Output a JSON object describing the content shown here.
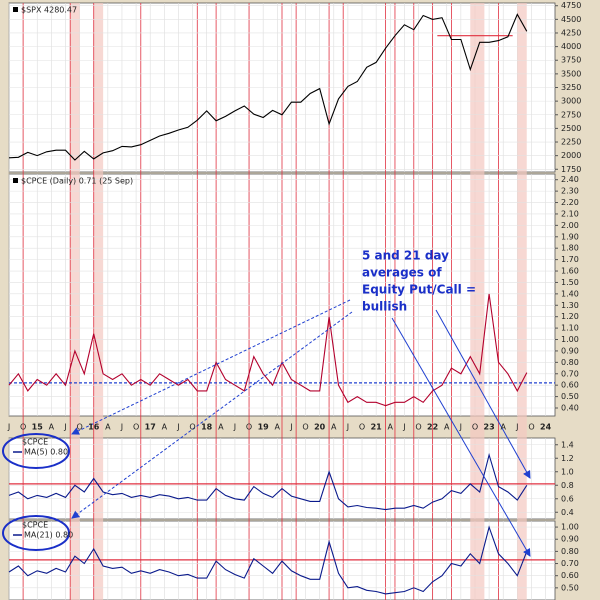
{
  "chart_data": [
    {
      "type": "line",
      "title": "$SPX 4280.47",
      "x": [
        "2014-07",
        "2014-09",
        "2014-11",
        "2015-01",
        "2015-03",
        "2015-05",
        "2015-07",
        "2015-09",
        "2015-11",
        "2016-01",
        "2016-03",
        "2016-05",
        "2016-07",
        "2016-09",
        "2016-11",
        "2017-01",
        "2017-03",
        "2017-05",
        "2017-07",
        "2017-09",
        "2017-11",
        "2018-01",
        "2018-03",
        "2018-05",
        "2018-07",
        "2018-09",
        "2018-11",
        "2019-01",
        "2019-03",
        "2019-05",
        "2019-07",
        "2019-09",
        "2019-11",
        "2020-01",
        "2020-03",
        "2020-05",
        "2020-07",
        "2020-09",
        "2020-11",
        "2021-01",
        "2021-03",
        "2021-05",
        "2021-07",
        "2021-09",
        "2021-11",
        "2022-01",
        "2022-03",
        "2022-05",
        "2022-07",
        "2022-09",
        "2022-11",
        "2023-01",
        "2023-03",
        "2023-05",
        "2023-07",
        "2023-09"
      ],
      "series": [
        {
          "name": "$SPX",
          "color": "#000000",
          "values": [
            1960,
            1970,
            2060,
            2000,
            2070,
            2100,
            2100,
            1920,
            2080,
            1940,
            2050,
            2090,
            2170,
            2160,
            2200,
            2280,
            2360,
            2410,
            2470,
            2520,
            2650,
            2820,
            2640,
            2720,
            2820,
            2910,
            2760,
            2700,
            2830,
            2750,
            2980,
            2980,
            3140,
            3230,
            2580,
            3040,
            3270,
            3360,
            3620,
            3710,
            3970,
            4200,
            4400,
            4310,
            4570,
            4500,
            4530,
            4130,
            4130,
            3580,
            4080,
            4080,
            4110,
            4180,
            4590,
            4280
          ]
        }
      ],
      "xlim": [
        "2014-07",
        "2024-03"
      ],
      "ylim": [
        1700,
        4800
      ],
      "yticks": [
        1750,
        2000,
        2250,
        2500,
        2750,
        3000,
        3250,
        3500,
        3750,
        4000,
        4250,
        4500,
        4750
      ],
      "hline": 4200,
      "hline_x": [
        "2022-02",
        "2023-06"
      ],
      "hline_color": "#e03040",
      "vlines": [
        "2014-10",
        "2015-08",
        "2016-01",
        "2016-11",
        "2017-11",
        "2018-03",
        "2018-10",
        "2019-05",
        "2019-08",
        "2020-03",
        "2020-06",
        "2021-03",
        "2021-05",
        "2021-09",
        "2022-01",
        "2022-05",
        "2023-03"
      ],
      "vline_color": "#e03040",
      "shaded": [
        [
          "2015-08",
          "2015-10"
        ],
        [
          "2016-01",
          "2016-03"
        ],
        [
          "2022-09",
          "2022-12"
        ],
        [
          "2023-07",
          "2023-09"
        ]
      ],
      "shade_color": "#f4c8c0"
    },
    {
      "type": "line",
      "title": "$CPCE (Daily) 0.71 (25 Sep)",
      "x": [
        "2014-07",
        "2014-09",
        "2014-11",
        "2015-01",
        "2015-03",
        "2015-05",
        "2015-07",
        "2015-09",
        "2015-11",
        "2016-01",
        "2016-03",
        "2016-05",
        "2016-07",
        "2016-09",
        "2016-11",
        "2017-01",
        "2017-03",
        "2017-05",
        "2017-07",
        "2017-09",
        "2017-11",
        "2018-01",
        "2018-03",
        "2018-05",
        "2018-07",
        "2018-09",
        "2018-11",
        "2019-01",
        "2019-03",
        "2019-05",
        "2019-07",
        "2019-09",
        "2019-11",
        "2020-01",
        "2020-03",
        "2020-05",
        "2020-07",
        "2020-09",
        "2020-11",
        "2021-01",
        "2021-03",
        "2021-05",
        "2021-07",
        "2021-09",
        "2021-11",
        "2022-01",
        "2022-03",
        "2022-05",
        "2022-07",
        "2022-09",
        "2022-11",
        "2023-01",
        "2023-03",
        "2023-05",
        "2023-07",
        "2023-09"
      ],
      "series": [
        {
          "name": "$CPCE",
          "color": "#b3002d",
          "values": [
            0.6,
            0.7,
            0.55,
            0.65,
            0.6,
            0.7,
            0.6,
            0.9,
            0.7,
            1.05,
            0.7,
            0.65,
            0.7,
            0.6,
            0.65,
            0.6,
            0.7,
            0.65,
            0.6,
            0.65,
            0.55,
            0.55,
            0.8,
            0.65,
            0.6,
            0.55,
            0.85,
            0.7,
            0.6,
            0.8,
            0.65,
            0.6,
            0.55,
            0.55,
            1.2,
            0.6,
            0.45,
            0.5,
            0.45,
            0.45,
            0.42,
            0.45,
            0.45,
            0.5,
            0.45,
            0.55,
            0.6,
            0.75,
            0.7,
            0.85,
            0.7,
            1.4,
            0.8,
            0.7,
            0.55,
            0.71
          ]
        }
      ],
      "xlim": [
        "2014-07",
        "2024-03"
      ],
      "ylim": [
        0.33,
        2.45
      ],
      "yticks": [
        {
          "value": 0.4,
          "label": "0.40"
        },
        {
          "value": 0.5,
          "label": "0.50"
        },
        {
          "value": 0.6,
          "label": "0.60"
        },
        {
          "value": 0.7,
          "label": "0.70"
        },
        {
          "value": 0.8,
          "label": "0.80"
        },
        {
          "value": 0.9,
          "label": "0.90"
        },
        {
          "value": 1.0,
          "label": "1.00"
        },
        {
          "value": 1.1,
          "label": "1.10"
        },
        {
          "value": 1.2,
          "label": "1.20"
        },
        {
          "value": 1.3,
          "label": "1.30"
        },
        {
          "value": 1.4,
          "label": "1.40"
        },
        {
          "value": 1.5,
          "label": "1.50"
        },
        {
          "value": 1.6,
          "label": "1.60"
        },
        {
          "value": 1.7,
          "label": "1.70"
        },
        {
          "value": 1.8,
          "label": "1.80"
        },
        {
          "value": 1.9,
          "label": "1.90"
        },
        {
          "value": 2.0,
          "label": "2.00"
        },
        {
          "value": 2.1,
          "label": "2.10"
        },
        {
          "value": 2.2,
          "label": "2.20"
        },
        {
          "value": 2.3,
          "label": "2.30"
        },
        {
          "value": 2.4,
          "label": "2.40"
        }
      ],
      "hline": 0.62,
      "hline_color": "#2040d0",
      "xticks": [
        {
          "value": "2014-07",
          "label": "J"
        },
        {
          "value": "2014-10",
          "label": "O"
        },
        {
          "value": "2015-01",
          "label": "15"
        },
        {
          "value": "2015-04",
          "label": "A"
        },
        {
          "value": "2015-07",
          "label": "J"
        },
        {
          "value": "2015-10",
          "label": "O"
        },
        {
          "value": "2016-01",
          "label": "16"
        },
        {
          "value": "2016-04",
          "label": "A"
        },
        {
          "value": "2016-07",
          "label": "J"
        },
        {
          "value": "2016-10",
          "label": "O"
        },
        {
          "value": "2017-01",
          "label": "17"
        },
        {
          "value": "2017-04",
          "label": "A"
        },
        {
          "value": "2017-07",
          "label": "J"
        },
        {
          "value": "2017-10",
          "label": "O"
        },
        {
          "value": "2018-01",
          "label": "18"
        },
        {
          "value": "2018-04",
          "label": "A"
        },
        {
          "value": "2018-07",
          "label": "J"
        },
        {
          "value": "2018-10",
          "label": "O"
        },
        {
          "value": "2019-01",
          "label": "19"
        },
        {
          "value": "2019-04",
          "label": "A"
        },
        {
          "value": "2019-07",
          "label": "J"
        },
        {
          "value": "2019-10",
          "label": "O"
        },
        {
          "value": "2020-01",
          "label": "20"
        },
        {
          "value": "2020-04",
          "label": "A"
        },
        {
          "value": "2020-07",
          "label": "J"
        },
        {
          "value": "2020-10",
          "label": "O"
        },
        {
          "value": "2021-01",
          "label": "21"
        },
        {
          "value": "2021-04",
          "label": "A"
        },
        {
          "value": "2021-07",
          "label": "J"
        },
        {
          "value": "2021-10",
          "label": "O"
        },
        {
          "value": "2022-01",
          "label": "22"
        },
        {
          "value": "2022-04",
          "label": "A"
        },
        {
          "value": "2022-07",
          "label": "J"
        },
        {
          "value": "2022-10",
          "label": "O"
        },
        {
          "value": "2023-01",
          "label": "23"
        },
        {
          "value": "2023-04",
          "label": "A"
        },
        {
          "value": "2023-07",
          "label": "J"
        },
        {
          "value": "2023-10",
          "label": "O"
        },
        {
          "value": "2024-01",
          "label": "24"
        }
      ],
      "annotation": [
        "5 and 21 day",
        "averages of",
        "Equity Put/Call =",
        "bullish"
      ]
    },
    {
      "type": "line",
      "title": "$CPCE",
      "x": [
        "2014-07",
        "2014-09",
        "2014-11",
        "2015-01",
        "2015-03",
        "2015-05",
        "2015-07",
        "2015-09",
        "2015-11",
        "2016-01",
        "2016-03",
        "2016-05",
        "2016-07",
        "2016-09",
        "2016-11",
        "2017-01",
        "2017-03",
        "2017-05",
        "2017-07",
        "2017-09",
        "2017-11",
        "2018-01",
        "2018-03",
        "2018-05",
        "2018-07",
        "2018-09",
        "2018-11",
        "2019-01",
        "2019-03",
        "2019-05",
        "2019-07",
        "2019-09",
        "2019-11",
        "2020-01",
        "2020-03",
        "2020-05",
        "2020-07",
        "2020-09",
        "2020-11",
        "2021-01",
        "2021-03",
        "2021-05",
        "2021-07",
        "2021-09",
        "2021-11",
        "2022-01",
        "2022-03",
        "2022-05",
        "2022-07",
        "2022-09",
        "2022-11",
        "2023-01",
        "2023-03",
        "2023-05",
        "2023-07",
        "2023-09"
      ],
      "series": [
        {
          "name": "MA(5) 0.80",
          "color": "#0a1a8c",
          "values": [
            0.65,
            0.7,
            0.6,
            0.65,
            0.62,
            0.68,
            0.62,
            0.8,
            0.7,
            0.9,
            0.7,
            0.66,
            0.68,
            0.62,
            0.65,
            0.62,
            0.66,
            0.64,
            0.6,
            0.62,
            0.58,
            0.58,
            0.75,
            0.65,
            0.6,
            0.58,
            0.78,
            0.68,
            0.62,
            0.75,
            0.64,
            0.6,
            0.56,
            0.56,
            1.0,
            0.6,
            0.48,
            0.5,
            0.47,
            0.46,
            0.44,
            0.46,
            0.46,
            0.5,
            0.46,
            0.55,
            0.6,
            0.72,
            0.68,
            0.82,
            0.7,
            1.25,
            0.78,
            0.7,
            0.58,
            0.8
          ]
        }
      ],
      "xlim": [
        "2014-07",
        "2024-03"
      ],
      "ylim": [
        0.3,
        1.5
      ],
      "yticks": [
        0.4,
        0.6,
        0.8,
        {
          "value": 1.0,
          "label": "1.0"
        },
        1.2,
        1.4
      ],
      "hline": 0.82,
      "hline_color": "#e03040"
    },
    {
      "type": "line",
      "title": "$CPCE",
      "x": [
        "2014-07",
        "2014-09",
        "2014-11",
        "2015-01",
        "2015-03",
        "2015-05",
        "2015-07",
        "2015-09",
        "2015-11",
        "2016-01",
        "2016-03",
        "2016-05",
        "2016-07",
        "2016-09",
        "2016-11",
        "2017-01",
        "2017-03",
        "2017-05",
        "2017-07",
        "2017-09",
        "2017-11",
        "2018-01",
        "2018-03",
        "2018-05",
        "2018-07",
        "2018-09",
        "2018-11",
        "2019-01",
        "2019-03",
        "2019-05",
        "2019-07",
        "2019-09",
        "2019-11",
        "2020-01",
        "2020-03",
        "2020-05",
        "2020-07",
        "2020-09",
        "2020-11",
        "2021-01",
        "2021-03",
        "2021-05",
        "2021-07",
        "2021-09",
        "2021-11",
        "2022-01",
        "2022-03",
        "2022-05",
        "2022-07",
        "2022-09",
        "2022-11",
        "2023-01",
        "2023-03",
        "2023-05",
        "2023-07",
        "2023-09"
      ],
      "series": [
        {
          "name": "MA(21) 0.80",
          "color": "#0a1a8c",
          "values": [
            0.63,
            0.68,
            0.6,
            0.64,
            0.62,
            0.66,
            0.63,
            0.76,
            0.7,
            0.82,
            0.68,
            0.66,
            0.67,
            0.62,
            0.64,
            0.62,
            0.65,
            0.63,
            0.6,
            0.61,
            0.58,
            0.58,
            0.72,
            0.65,
            0.61,
            0.58,
            0.74,
            0.68,
            0.62,
            0.72,
            0.64,
            0.6,
            0.57,
            0.57,
            0.88,
            0.62,
            0.5,
            0.51,
            0.48,
            0.47,
            0.45,
            0.46,
            0.47,
            0.5,
            0.47,
            0.55,
            0.6,
            0.7,
            0.68,
            0.78,
            0.7,
            1.0,
            0.78,
            0.7,
            0.6,
            0.8
          ]
        }
      ],
      "xlim": [
        "2014-07",
        "2024-03"
      ],
      "ylim": [
        0.4,
        1.05
      ],
      "yticks": [
        {
          "value": 0.5,
          "label": "0.50"
        },
        {
          "value": 0.6,
          "label": "0.60"
        },
        {
          "value": 0.7,
          "label": "0.70"
        },
        {
          "value": 0.8,
          "label": "0.80"
        },
        {
          "value": 0.9,
          "label": "0.90"
        },
        {
          "value": 1.0,
          "label": "1.00"
        }
      ],
      "hline": 0.73,
      "hline_color": "#e03040"
    }
  ]
}
